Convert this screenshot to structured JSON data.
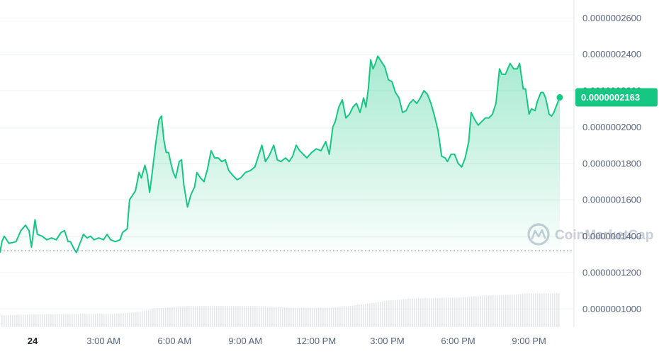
{
  "chart_data": {
    "type": "area",
    "title": "",
    "xlabel": "",
    "ylabel": "",
    "ylim": [
      9e-08,
      2.64e-07
    ],
    "y_ticks": [
      "0.0000002600",
      "0.0000002400",
      "0.0000002200",
      "0.0000002000",
      "0.0000001800",
      "0.0000001600",
      "0.0000001400",
      "0.0000001200",
      "0.0000001000"
    ],
    "y_tick_values": [
      2.6e-07,
      2.4e-07,
      2.2e-07,
      2e-07,
      1.8e-07,
      1.6e-07,
      1.4e-07,
      1.2e-07,
      1e-07
    ],
    "x_ticks": [
      {
        "label": "24",
        "hour": 0,
        "bold": true
      },
      {
        "label": "3:00 AM",
        "hour": 3
      },
      {
        "label": "6:00 AM",
        "hour": 6
      },
      {
        "label": "9:00 AM",
        "hour": 9
      },
      {
        "label": "12:00 PM",
        "hour": 12
      },
      {
        "label": "3:00 PM",
        "hour": 15
      },
      {
        "label": "6:00 PM",
        "hour": 18
      },
      {
        "label": "9:00 PM",
        "hour": 21
      }
    ],
    "x_range_hours": [
      -1.38,
      22.9
    ],
    "reference_price": 1.32e-07,
    "current_price": 2.163e-07,
    "current_price_label": "0.0000002163",
    "grid": true,
    "colors": {
      "line": "#16c784",
      "area_top": "#16c784",
      "down": "#ea3943",
      "tag_bg": "#16c784",
      "grid": "#eff2f5",
      "axis_text": "#58667e",
      "volume": "#d1d5dc",
      "ref_line": "#9aa3b1"
    },
    "price_series": [
      [
        -1.38,
        1.31e-07
      ],
      [
        -1.3,
        1.37e-07
      ],
      [
        -1.2,
        1.4e-07
      ],
      [
        -1.0,
        1.36e-07
      ],
      [
        -0.7,
        1.37e-07
      ],
      [
        -0.5,
        1.43e-07
      ],
      [
        -0.3,
        1.46e-07
      ],
      [
        -0.15,
        1.43e-07
      ],
      [
        -0.05,
        1.34e-07
      ],
      [
        0.1,
        1.49e-07
      ],
      [
        0.2,
        1.41e-07
      ],
      [
        0.4,
        1.4e-07
      ],
      [
        0.6,
        1.38e-07
      ],
      [
        0.8,
        1.39e-07
      ],
      [
        1.0,
        1.38e-07
      ],
      [
        1.2,
        1.42e-07
      ],
      [
        1.35,
        1.43e-07
      ],
      [
        1.5,
        1.37e-07
      ],
      [
        1.6,
        1.37e-07
      ],
      [
        1.75,
        1.33e-07
      ],
      [
        1.85,
        1.31e-07
      ],
      [
        2.0,
        1.36e-07
      ],
      [
        2.15,
        1.41e-07
      ],
      [
        2.3,
        1.39e-07
      ],
      [
        2.45,
        1.4e-07
      ],
      [
        2.6,
        1.38e-07
      ],
      [
        2.8,
        1.39e-07
      ],
      [
        3.0,
        1.38e-07
      ],
      [
        3.15,
        1.41e-07
      ],
      [
        3.3,
        1.38e-07
      ],
      [
        3.5,
        1.37e-07
      ],
      [
        3.7,
        1.38e-07
      ],
      [
        3.8,
        1.42e-07
      ],
      [
        4.0,
        1.44e-07
      ],
      [
        4.1,
        1.6e-07
      ],
      [
        4.2,
        1.62e-07
      ],
      [
        4.35,
        1.65e-07
      ],
      [
        4.5,
        1.75e-07
      ],
      [
        4.6,
        1.72e-07
      ],
      [
        4.75,
        1.79e-07
      ],
      [
        4.85,
        1.74e-07
      ],
      [
        4.95,
        1.64e-07
      ],
      [
        5.05,
        1.74e-07
      ],
      [
        5.2,
        1.9e-07
      ],
      [
        5.35,
        2.04e-07
      ],
      [
        5.45,
        2.06e-07
      ],
      [
        5.55,
        1.93e-07
      ],
      [
        5.65,
        1.86e-07
      ],
      [
        5.75,
        1.86e-07
      ],
      [
        5.85,
        1.8e-07
      ],
      [
        5.95,
        1.75e-07
      ],
      [
        6.05,
        1.72e-07
      ],
      [
        6.2,
        1.81e-07
      ],
      [
        6.3,
        1.82e-07
      ],
      [
        6.4,
        1.68e-07
      ],
      [
        6.55,
        1.56e-07
      ],
      [
        6.7,
        1.63e-07
      ],
      [
        6.85,
        1.67e-07
      ],
      [
        6.95,
        1.75e-07
      ],
      [
        7.1,
        1.72e-07
      ],
      [
        7.25,
        1.7e-07
      ],
      [
        7.4,
        1.77e-07
      ],
      [
        7.55,
        1.87e-07
      ],
      [
        7.7,
        1.83e-07
      ],
      [
        7.85,
        1.83e-07
      ],
      [
        8.0,
        1.81e-07
      ],
      [
        8.15,
        1.82e-07
      ],
      [
        8.3,
        1.76e-07
      ],
      [
        8.5,
        1.73e-07
      ],
      [
        8.65,
        1.71e-07
      ],
      [
        8.8,
        1.72e-07
      ],
      [
        9.0,
        1.75e-07
      ],
      [
        9.2,
        1.76e-07
      ],
      [
        9.4,
        1.78e-07
      ],
      [
        9.55,
        1.84e-07
      ],
      [
        9.7,
        1.9e-07
      ],
      [
        9.85,
        1.81e-07
      ],
      [
        10.0,
        1.84e-07
      ],
      [
        10.2,
        1.9e-07
      ],
      [
        10.35,
        1.82e-07
      ],
      [
        10.5,
        1.81e-07
      ],
      [
        10.7,
        1.83e-07
      ],
      [
        10.85,
        1.81e-07
      ],
      [
        11.0,
        1.84e-07
      ],
      [
        11.15,
        1.9e-07
      ],
      [
        11.3,
        1.87e-07
      ],
      [
        11.45,
        1.85e-07
      ],
      [
        11.6,
        1.83e-07
      ],
      [
        11.8,
        1.86e-07
      ],
      [
        12.0,
        1.88e-07
      ],
      [
        12.2,
        1.87e-07
      ],
      [
        12.4,
        1.92e-07
      ],
      [
        12.55,
        1.85e-07
      ],
      [
        12.7,
        2e-07
      ],
      [
        12.8,
        2.03e-07
      ],
      [
        12.95,
        2.11e-07
      ],
      [
        13.1,
        2.15e-07
      ],
      [
        13.25,
        2.05e-07
      ],
      [
        13.4,
        2.07e-07
      ],
      [
        13.55,
        2.11e-07
      ],
      [
        13.7,
        2.13e-07
      ],
      [
        13.85,
        2.08e-07
      ],
      [
        14.0,
        2.16e-07
      ],
      [
        14.1,
        2.11e-07
      ],
      [
        14.2,
        2.21e-07
      ],
      [
        14.3,
        2.37e-07
      ],
      [
        14.4,
        2.32e-07
      ],
      [
        14.5,
        2.35e-07
      ],
      [
        14.6,
        2.39e-07
      ],
      [
        14.75,
        2.36e-07
      ],
      [
        14.9,
        2.33e-07
      ],
      [
        15.05,
        2.26e-07
      ],
      [
        15.2,
        2.25e-07
      ],
      [
        15.35,
        2.19e-07
      ],
      [
        15.5,
        2.16e-07
      ],
      [
        15.65,
        2.08e-07
      ],
      [
        15.8,
        2.09e-07
      ],
      [
        15.95,
        2.13e-07
      ],
      [
        16.1,
        2.15e-07
      ],
      [
        16.25,
        2.13e-07
      ],
      [
        16.4,
        2.16e-07
      ],
      [
        16.55,
        2.2e-07
      ],
      [
        16.7,
        2.18e-07
      ],
      [
        16.85,
        2.13e-07
      ],
      [
        17.0,
        2.06e-07
      ],
      [
        17.15,
        1.98e-07
      ],
      [
        17.3,
        1.84e-07
      ],
      [
        17.45,
        1.83e-07
      ],
      [
        17.55,
        1.81e-07
      ],
      [
        17.7,
        1.85e-07
      ],
      [
        17.85,
        1.85e-07
      ],
      [
        18.0,
        1.8e-07
      ],
      [
        18.15,
        1.78e-07
      ],
      [
        18.3,
        1.83e-07
      ],
      [
        18.45,
        1.92e-07
      ],
      [
        18.55,
        2.08e-07
      ],
      [
        18.7,
        2.04e-07
      ],
      [
        18.85,
        2.01e-07
      ],
      [
        19.0,
        2.03e-07
      ],
      [
        19.15,
        2.05e-07
      ],
      [
        19.3,
        2.05e-07
      ],
      [
        19.45,
        2.07e-07
      ],
      [
        19.6,
        2.13e-07
      ],
      [
        19.75,
        2.32e-07
      ],
      [
        19.85,
        2.29e-07
      ],
      [
        20.0,
        2.29e-07
      ],
      [
        20.1,
        2.32e-07
      ],
      [
        20.2,
        2.35e-07
      ],
      [
        20.35,
        2.32e-07
      ],
      [
        20.5,
        2.32e-07
      ],
      [
        20.6,
        2.35e-07
      ],
      [
        20.75,
        2.21e-07
      ],
      [
        20.85,
        2.21e-07
      ],
      [
        21.0,
        2.07e-07
      ],
      [
        21.1,
        2.1e-07
      ],
      [
        21.25,
        2.09e-07
      ],
      [
        21.35,
        2.14e-07
      ],
      [
        21.5,
        2.19e-07
      ],
      [
        21.6,
        2.19e-07
      ],
      [
        21.7,
        2.16e-07
      ],
      [
        21.85,
        2.07e-07
      ],
      [
        21.95,
        2.06e-07
      ],
      [
        22.05,
        2.08e-07
      ],
      [
        22.2,
        2.13e-07
      ],
      [
        22.3,
        2.163e-07
      ]
    ],
    "volume_relative": [
      [
        -1.38,
        0.23
      ],
      [
        0.0,
        0.25
      ],
      [
        2.0,
        0.26
      ],
      [
        3.5,
        0.26
      ],
      [
        4.5,
        0.3
      ],
      [
        5.2,
        0.37
      ],
      [
        6.5,
        0.41
      ],
      [
        7.5,
        0.42
      ],
      [
        9.5,
        0.41
      ],
      [
        11.0,
        0.38
      ],
      [
        12.5,
        0.38
      ],
      [
        13.5,
        0.42
      ],
      [
        14.0,
        0.45
      ],
      [
        15.0,
        0.52
      ],
      [
        16.0,
        0.56
      ],
      [
        17.0,
        0.57
      ],
      [
        18.0,
        0.58
      ],
      [
        19.0,
        0.62
      ],
      [
        20.0,
        0.63
      ],
      [
        21.0,
        0.66
      ],
      [
        22.3,
        0.66
      ]
    ]
  },
  "watermark": {
    "text": "CoinMarketCap",
    "icon": "coinmarketcap-logo"
  }
}
